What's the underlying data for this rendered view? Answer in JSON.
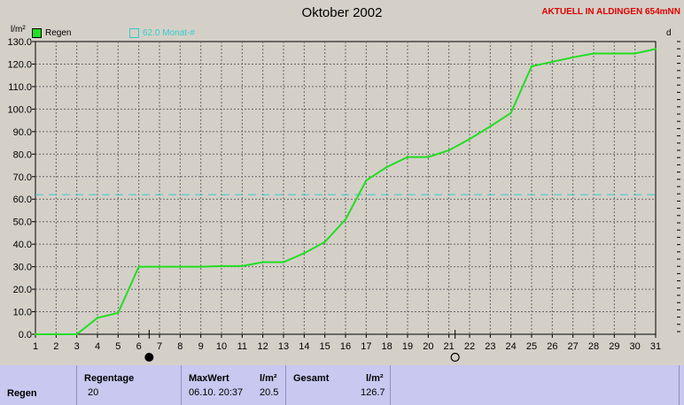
{
  "header": {
    "title": "Oktober 2002",
    "status": "AKTUELL IN ALDINGEN 654mNN",
    "y_unit": "l/m²",
    "right_label": "d"
  },
  "legend": {
    "series_label": "Regen",
    "series_color": "#22dd22",
    "reference_label": "62.0 Monat-#",
    "reference_color": "#33cccc"
  },
  "markers": {
    "new_moon_day": 6.5,
    "full_moon_day": 21.3
  },
  "chart_data": {
    "type": "line",
    "title": "Oktober 2002",
    "ylabel": "l/m²",
    "xlabel": "",
    "xlim": [
      1,
      31
    ],
    "ylim": [
      0,
      130
    ],
    "grid": true,
    "legend_position": "top-left",
    "x_ticks": [
      1,
      2,
      3,
      4,
      5,
      6,
      7,
      8,
      9,
      10,
      11,
      12,
      13,
      14,
      15,
      16,
      17,
      18,
      19,
      20,
      21,
      22,
      23,
      24,
      25,
      26,
      27,
      28,
      29,
      30,
      31
    ],
    "y_ticks": [
      0,
      10,
      20,
      30,
      40,
      50,
      60,
      70,
      80,
      90,
      100,
      110,
      120,
      130
    ],
    "series": [
      {
        "name": "Regen",
        "x": [
          1,
          2,
          3,
          4,
          5,
          6,
          7,
          8,
          9,
          10,
          11,
          12,
          13,
          14,
          15,
          16,
          17,
          18,
          19,
          20,
          21,
          22,
          23,
          24,
          25,
          26,
          27,
          28,
          29,
          30,
          31
        ],
        "values": [
          0,
          0,
          0,
          7.3,
          9.5,
          30,
          30,
          30,
          30,
          30.3,
          30.3,
          32,
          32,
          36,
          41,
          51,
          68.3,
          74.3,
          78.7,
          78.7,
          81.7,
          86.7,
          92.3,
          98.3,
          119,
          121,
          123,
          124.7,
          124.7,
          124.7,
          126.7
        ]
      }
    ],
    "reference_lines": [
      {
        "name": "62.0 Monat-#",
        "y": 62
      }
    ]
  },
  "stats": {
    "row_label": "Regen",
    "regentage_header": "Regentage",
    "regentage_value": "20",
    "maxwert_header": "MaxWert",
    "maxwert_unit": "l/m²",
    "maxwert_date": "06.10.  20:37",
    "maxwert_value": "20.5",
    "gesamt_header": "Gesamt",
    "gesamt_unit": "l/m²",
    "gesamt_value": "126.7"
  }
}
